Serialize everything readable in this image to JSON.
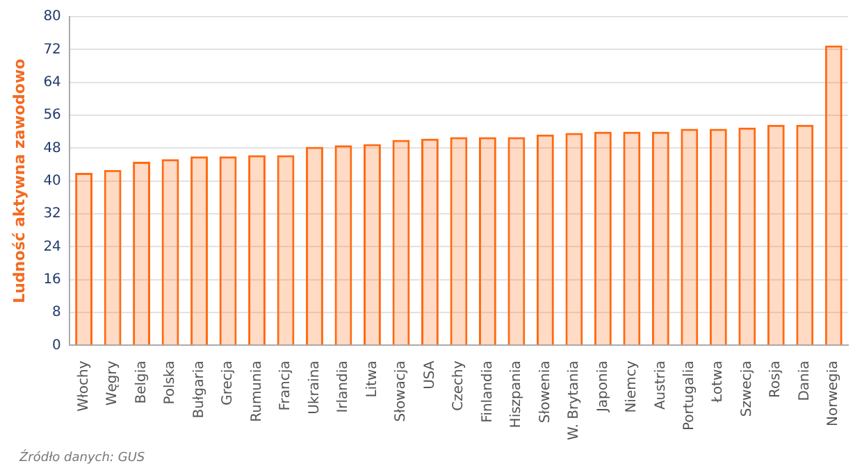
{
  "chart_data": {
    "type": "bar",
    "categories": [
      "Włochy",
      "Węgry",
      "Belgia",
      "Polska",
      "Bułgaria",
      "Grecja",
      "Rumunia",
      "Francja",
      "Ukraina",
      "Irlandia",
      "Litwa",
      "Słowacja",
      "USA",
      "Czechy",
      "Finlandia",
      "Hiszpania",
      "Słowenia",
      "W. Brytania",
      "Japonia",
      "Niemcy",
      "Austria",
      "Portugalia",
      "Łotwa",
      "Szwecja",
      "Rosja",
      "Dania",
      "Norwegia"
    ],
    "values": [
      42.0,
      42.7,
      44.7,
      45.3,
      46.0,
      46.0,
      46.3,
      46.3,
      48.3,
      48.7,
      49.0,
      50.0,
      50.3,
      50.7,
      50.7,
      50.7,
      51.3,
      51.7,
      52.0,
      52.0,
      52.0,
      52.7,
      52.7,
      53.0,
      53.7,
      53.7,
      73.0
    ],
    "color": "#ff6a13",
    "ylabel": "Ludność aktywna zawodowo",
    "ylim": [
      0,
      80
    ],
    "yticks": [
      0,
      8,
      16,
      24,
      32,
      40,
      48,
      56,
      64,
      72,
      80
    ],
    "grid": "y",
    "legend": false,
    "annotations": [
      "Źródło danych: GUS"
    ]
  }
}
